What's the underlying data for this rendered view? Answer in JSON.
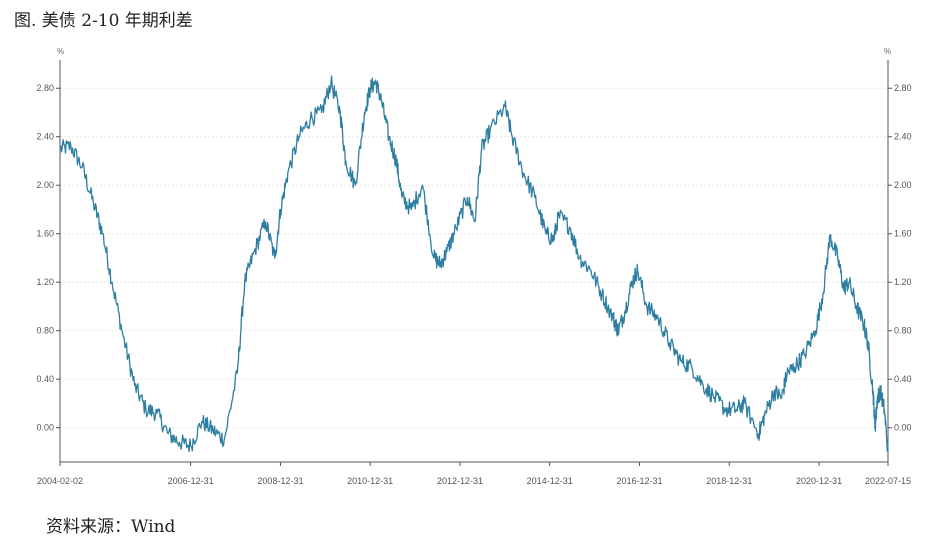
{
  "figure": {
    "title": "图. 美债 2-10 年期利差",
    "source": "资料来源：Wind"
  },
  "colors": {
    "line": "#2e7ea1",
    "axis": "#555555",
    "grid": "#dddddd"
  },
  "chart_data": {
    "type": "line",
    "title": "图. 美债 2-10 年期利差",
    "y_unit_left": "%",
    "y_unit_right": "%",
    "ylim": [
      -0.25,
      3.0
    ],
    "yticks": [
      0.0,
      0.4,
      0.8,
      1.2,
      1.6,
      2.0,
      2.4,
      2.8
    ],
    "ytick_labels": [
      "0.00",
      "0.40",
      "0.80",
      "1.20",
      "1.60",
      "2.00",
      "2.40",
      "2.80"
    ],
    "xlim": [
      "2004-02-02",
      "2022-07-15"
    ],
    "xtick_labels": [
      "2004-02-02",
      "2006-12-31",
      "2008-12-31",
      "2010-12-31",
      "2012-12-31",
      "2014-12-31",
      "2016-12-31",
      "2018-12-31",
      "2020-12-31",
      "2022-07-15"
    ],
    "xtick_dates": [
      "2004-02-02",
      "2006-12-31",
      "2008-12-31",
      "2010-12-31",
      "2012-12-31",
      "2014-12-31",
      "2016-12-31",
      "2018-12-31",
      "2020-12-31",
      "2022-07-15"
    ],
    "grid": true,
    "series": [
      {
        "x": [
          "2004-02-02",
          "2004-05-01",
          "2004-08-01",
          "2004-11-01",
          "2005-01-15",
          "2005-04-01",
          "2005-07-01",
          "2005-10-01",
          "2006-01-01",
          "2006-04-01",
          "2006-07-01",
          "2006-10-01",
          "2007-01-01",
          "2007-04-01",
          "2007-07-01",
          "2007-10-01",
          "2008-01-15",
          "2008-03-15",
          "2008-06-01",
          "2008-09-01",
          "2008-11-15",
          "2009-01-01",
          "2009-03-01",
          "2009-06-01",
          "2009-09-01",
          "2009-12-01",
          "2010-02-15",
          "2010-05-01",
          "2010-06-15",
          "2010-09-01",
          "2010-11-15",
          "2011-01-01",
          "2011-02-15",
          "2011-04-01",
          "2011-06-01",
          "2011-08-01",
          "2011-09-15",
          "2011-12-01",
          "2012-03-01",
          "2012-06-01",
          "2012-07-25",
          "2012-09-15",
          "2012-12-01",
          "2013-03-01",
          "2013-05-01",
          "2013-06-25",
          "2013-09-01",
          "2013-12-31",
          "2014-03-01",
          "2014-06-01",
          "2014-09-01",
          "2014-12-01",
          "2015-01-30",
          "2015-03-15",
          "2015-06-15",
          "2015-09-01",
          "2015-12-01",
          "2016-03-01",
          "2016-06-01",
          "2016-07-10",
          "2016-09-01",
          "2016-11-01",
          "2016-12-15",
          "2017-03-01",
          "2017-06-01",
          "2017-09-01",
          "2017-12-01",
          "2018-03-01",
          "2018-06-01",
          "2018-09-01",
          "2018-12-01",
          "2019-03-01",
          "2019-05-01",
          "2019-08-27",
          "2019-10-15",
          "2019-12-31",
          "2020-03-01",
          "2020-04-15",
          "2020-06-15",
          "2020-09-01",
          "2020-12-01",
          "2021-01-31",
          "2021-03-31",
          "2021-06-01",
          "2021-07-20",
          "2021-09-01",
          "2021-11-01",
          "2021-12-31",
          "2022-02-01",
          "2022-03-15",
          "2022-04-01",
          "2022-04-20",
          "2022-05-15",
          "2022-06-15",
          "2022-07-15"
        ],
        "values": [
          2.3,
          2.32,
          2.15,
          1.85,
          1.6,
          1.2,
          0.75,
          0.35,
          0.15,
          0.12,
          -0.05,
          -0.12,
          -0.15,
          0.05,
          -0.02,
          -0.1,
          0.45,
          1.2,
          1.45,
          1.7,
          1.4,
          1.8,
          2.1,
          2.4,
          2.55,
          2.6,
          2.85,
          2.6,
          2.2,
          2.0,
          2.6,
          2.8,
          2.85,
          2.7,
          2.4,
          2.2,
          1.9,
          1.8,
          2.0,
          1.4,
          1.35,
          1.45,
          1.65,
          1.9,
          1.7,
          2.3,
          2.45,
          2.65,
          2.4,
          2.1,
          1.9,
          1.6,
          1.55,
          1.75,
          1.65,
          1.4,
          1.3,
          1.1,
          0.9,
          0.8,
          0.95,
          1.2,
          1.3,
          1.0,
          0.9,
          0.7,
          0.55,
          0.5,
          0.35,
          0.25,
          0.15,
          0.15,
          0.2,
          -0.05,
          0.1,
          0.3,
          0.25,
          0.45,
          0.5,
          0.6,
          0.8,
          1.1,
          1.58,
          1.4,
          1.15,
          1.2,
          1.0,
          0.85,
          0.7,
          0.3,
          0.0,
          0.25,
          0.3,
          0.15,
          -0.2
        ]
      }
    ]
  }
}
